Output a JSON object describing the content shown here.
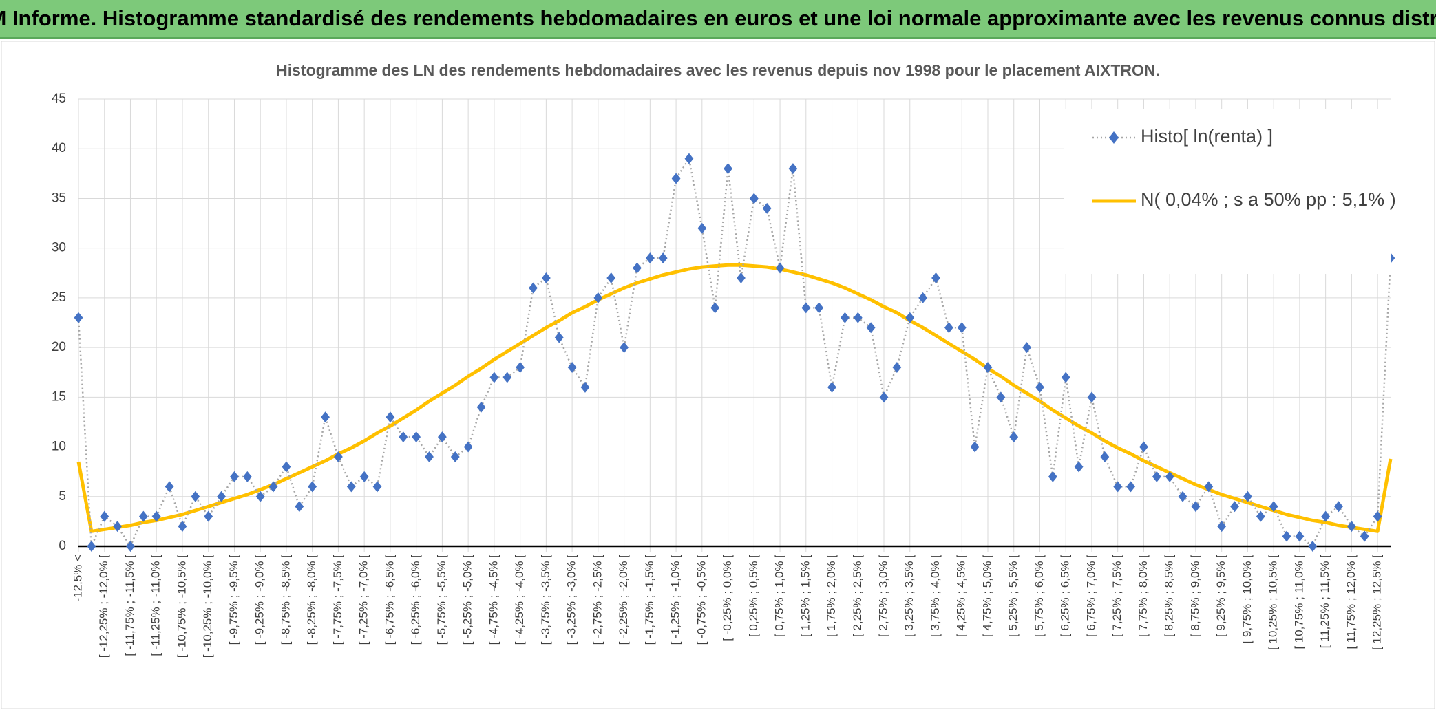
{
  "header": {
    "title": "ADAM Informe. Histogramme standardisé des rendements hebdomadaires en euros et une loi normale approximante avec les revenus connus distribués"
  },
  "chart_data": {
    "type": "line",
    "title": "Histogramme des LN des rendements hebdomadaires avec les revenus depuis nov 1998 pour le placement AIXTRON.",
    "categories": [
      "-12,5% <",
      null,
      "[ -12,25% ; -12,0% [",
      null,
      "[ -11,75% ; -11,5% [",
      null,
      "[ -11,25% ; -11,0% [",
      null,
      "[ -10,75% ; -10,5% [",
      null,
      "[ -10,25% ; -10,0% [",
      null,
      "[ -9,75% ; -9,5% [",
      null,
      "[ -9,25% ; -9,0% [",
      null,
      "[ -8,75% ; -8,5% [",
      null,
      "[ -8,25% ; -8,0% [",
      null,
      "[ -7,75% ; -7,5% [",
      null,
      "[ -7,25% ; -7,0% [",
      null,
      "[ -6,75% ; -6,5% [",
      null,
      "[ -6,25% ; -6,0% [",
      null,
      "[ -5,75% ; -5,5% [",
      null,
      "[ -5,25% ; -5,0% [",
      null,
      "[ -4,75% ; -4,5% [",
      null,
      "[ -4,25% ; -4,0% [",
      null,
      "[ -3,75% ; -3,5% [",
      null,
      "[ -3,25% ; -3,0% [",
      null,
      "[ -2,75% ; -2,5% [",
      null,
      "[ -2,25% ; -2,0% [",
      null,
      "[ -1,75% ; -1,5% [",
      null,
      "[ -1,25% ; -1,0% [",
      null,
      "[ -0,75% ; -0,5% [",
      null,
      "[ -0,25% ; 0,0% [",
      null,
      "[ 0,25% ; 0,5% [",
      null,
      "[ 0,75% ; 1,0% [",
      null,
      "[ 1,25% ; 1,5% [",
      null,
      "[ 1,75% ; 2,0% [",
      null,
      "[ 2,25% ; 2,5% [",
      null,
      "[ 2,75% ; 3,0% [",
      null,
      "[ 3,25% ; 3,5% [",
      null,
      "[ 3,75% ; 4,0% [",
      null,
      "[ 4,25% ; 4,5% [",
      null,
      "[ 4,75% ; 5,0% [",
      null,
      "[ 5,25% ; 5,5% [",
      null,
      "[ 5,75% ; 6,0% [",
      null,
      "[ 6,25% ; 6,5% [",
      null,
      "[ 6,75% ; 7,0% [",
      null,
      "[ 7,25% ; 7,5% [",
      null,
      "[ 7,75% ; 8,0% [",
      null,
      "[ 8,25% ; 8,5% [",
      null,
      "[ 8,75% ; 9,0% [",
      null,
      "[ 9,25% ; 9,5% [",
      null,
      "[ 9,75% ; 10,0% [",
      null,
      "[ 10,25% ; 10,5% [",
      null,
      "[ 10,75% ; 11,0% [",
      null,
      "[ 11,25% ; 11,5% [",
      null,
      "[ 11,75% ; 12,0% [",
      null,
      "[ 12,25% ; 12,5% [",
      null
    ],
    "series": [
      {
        "name": "Histo[ ln(renta) ]",
        "color": "#4472c4",
        "line_color": "#a6a6a6",
        "values": [
          23,
          0,
          3,
          2,
          0,
          3,
          3,
          6,
          2,
          5,
          3,
          5,
          7,
          7,
          5,
          6,
          8,
          4,
          6,
          13,
          9,
          6,
          7,
          6,
          13,
          11,
          11,
          9,
          11,
          9,
          10,
          14,
          17,
          17,
          18,
          26,
          27,
          21,
          18,
          16,
          25,
          27,
          20,
          28,
          29,
          29,
          37,
          39,
          32,
          24,
          38,
          27,
          35,
          34,
          28,
          38,
          24,
          24,
          16,
          23,
          23,
          22,
          15,
          18,
          23,
          25,
          27,
          22,
          22,
          10,
          18,
          15,
          11,
          20,
          16,
          7,
          17,
          8,
          15,
          9,
          6,
          6,
          10,
          7,
          7,
          5,
          4,
          6,
          2,
          4,
          5,
          3,
          4,
          1,
          1,
          0,
          3,
          4,
          2,
          1,
          3,
          29
        ]
      },
      {
        "name": "N( 0,04% ; s a 50% pp : 5,1% )",
        "color": "#ffc000",
        "values": [
          8.5,
          1.5,
          1.7,
          1.9,
          2.1,
          2.4,
          2.6,
          2.9,
          3.2,
          3.6,
          4.0,
          4.4,
          4.8,
          5.2,
          5.7,
          6.2,
          6.8,
          7.4,
          8.0,
          8.6,
          9.3,
          9.9,
          10.6,
          11.4,
          12.1,
          12.9,
          13.7,
          14.6,
          15.4,
          16.2,
          17.1,
          17.9,
          18.8,
          19.6,
          20.4,
          21.2,
          22.0,
          22.7,
          23.5,
          24.1,
          24.8,
          25.4,
          26.0,
          26.5,
          26.9,
          27.3,
          27.6,
          27.9,
          28.1,
          28.2,
          28.3,
          28.3,
          28.2,
          28.1,
          27.9,
          27.6,
          27.3,
          26.9,
          26.5,
          26.0,
          25.4,
          24.8,
          24.1,
          23.5,
          22.7,
          22.0,
          21.2,
          20.4,
          19.6,
          18.8,
          17.9,
          17.1,
          16.2,
          15.4,
          14.6,
          13.7,
          12.9,
          12.1,
          11.4,
          10.6,
          9.9,
          9.3,
          8.6,
          8.0,
          7.4,
          6.8,
          6.2,
          5.7,
          5.2,
          4.8,
          4.4,
          4.0,
          3.6,
          3.2,
          2.9,
          2.6,
          2.4,
          2.1,
          1.9,
          1.7,
          1.5,
          8.8
        ]
      }
    ],
    "ylim": [
      0,
      45
    ],
    "yticks": [
      0,
      5,
      10,
      15,
      20,
      25,
      30,
      35,
      40,
      45
    ],
    "grid": true,
    "legend": "upper right"
  }
}
